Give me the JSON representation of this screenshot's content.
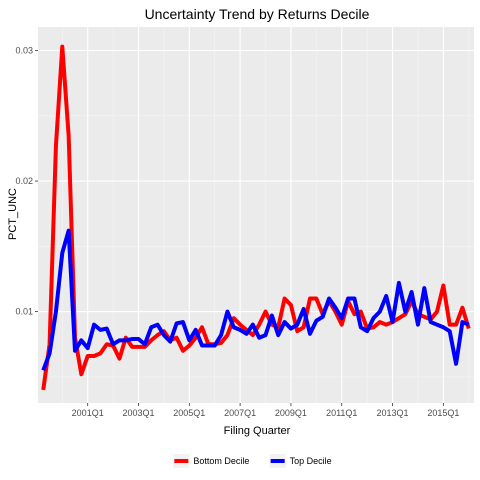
{
  "chart_data": {
    "type": "line",
    "title": "Uncertainty Trend by Returns Decile",
    "xlabel": "Filing Quarter",
    "ylabel": "PCT_UNC",
    "x_ticks": [
      "2001Q1",
      "2003Q1",
      "2005Q1",
      "2007Q1",
      "2009Q1",
      "2011Q1",
      "2013Q1",
      "2015Q1"
    ],
    "y_ticks": [
      0.01,
      0.02,
      0.03
    ],
    "y_tick_labels": [
      "0.01",
      "0.02",
      "0.03"
    ],
    "x_range": [
      "1999Q2",
      "2016Q1"
    ],
    "ylim": [
      0.003,
      0.0318
    ],
    "grid": true,
    "legend_position": "bottom",
    "series": [
      {
        "name": "Bottom Decile",
        "color": "#ff0000",
        "points": [
          [
            "1999Q2",
            0.004
          ],
          [
            "1999Q3",
            0.0075
          ],
          [
            "1999Q4",
            0.0227
          ],
          [
            "2000Q1",
            0.0303
          ],
          [
            "2000Q2",
            0.0235
          ],
          [
            "2000Q3",
            0.008
          ],
          [
            "2000Q4",
            0.0052
          ],
          [
            "2001Q1",
            0.0066
          ],
          [
            "2001Q2",
            0.0066
          ],
          [
            "2001Q3",
            0.0068
          ],
          [
            "2001Q4",
            0.0075
          ],
          [
            "2002Q1",
            0.0074
          ],
          [
            "2002Q2",
            0.0064
          ],
          [
            "2002Q3",
            0.008
          ],
          [
            "2002Q4",
            0.0073
          ],
          [
            "2003Q1",
            0.0073
          ],
          [
            "2003Q2",
            0.0073
          ],
          [
            "2003Q3",
            0.0078
          ],
          [
            "2003Q4",
            0.0082
          ],
          [
            "2004Q1",
            0.0085
          ],
          [
            "2004Q2",
            0.0078
          ],
          [
            "2004Q3",
            0.008
          ],
          [
            "2004Q4",
            0.007
          ],
          [
            "2005Q1",
            0.0074
          ],
          [
            "2005Q2",
            0.008
          ],
          [
            "2005Q3",
            0.0088
          ],
          [
            "2005Q4",
            0.0075
          ],
          [
            "2006Q1",
            0.0075
          ],
          [
            "2006Q2",
            0.0076
          ],
          [
            "2006Q3",
            0.0082
          ],
          [
            "2006Q4",
            0.0095
          ],
          [
            "2007Q1",
            0.009
          ],
          [
            "2007Q2",
            0.0086
          ],
          [
            "2007Q3",
            0.0082
          ],
          [
            "2007Q4",
            0.009
          ],
          [
            "2008Q1",
            0.01
          ],
          [
            "2008Q2",
            0.009
          ],
          [
            "2008Q3",
            0.0088
          ],
          [
            "2008Q4",
            0.011
          ],
          [
            "2009Q1",
            0.0105
          ],
          [
            "2009Q2",
            0.0085
          ],
          [
            "2009Q3",
            0.0088
          ],
          [
            "2009Q4",
            0.011
          ],
          [
            "2010Q1",
            0.011
          ],
          [
            "2010Q2",
            0.0098
          ],
          [
            "2010Q3",
            0.0108
          ],
          [
            "2010Q4",
            0.01
          ],
          [
            "2011Q1",
            0.009
          ],
          [
            "2011Q2",
            0.0108
          ],
          [
            "2011Q3",
            0.0098
          ],
          [
            "2011Q4",
            0.01
          ],
          [
            "2012Q1",
            0.0087
          ],
          [
            "2012Q2",
            0.0088
          ],
          [
            "2012Q3",
            0.0092
          ],
          [
            "2012Q4",
            0.009
          ],
          [
            "2013Q1",
            0.0092
          ],
          [
            "2013Q2",
            0.0095
          ],
          [
            "2013Q3",
            0.0098
          ],
          [
            "2013Q4",
            0.0108
          ],
          [
            "2014Q1",
            0.0098
          ],
          [
            "2014Q2",
            0.0096
          ],
          [
            "2014Q3",
            0.0094
          ],
          [
            "2014Q4",
            0.01
          ],
          [
            "2015Q1",
            0.012
          ],
          [
            "2015Q2",
            0.009
          ],
          [
            "2015Q3",
            0.009
          ],
          [
            "2015Q4",
            0.0103
          ],
          [
            "2016Q1",
            0.0087
          ]
        ]
      },
      {
        "name": "Top Decile",
        "color": "#0000ff",
        "points": [
          [
            "1999Q2",
            0.0055
          ],
          [
            "1999Q3",
            0.0068
          ],
          [
            "1999Q4",
            0.01
          ],
          [
            "2000Q1",
            0.0145
          ],
          [
            "2000Q2",
            0.0162
          ],
          [
            "2000Q3",
            0.007
          ],
          [
            "2000Q4",
            0.0078
          ],
          [
            "2001Q1",
            0.0072
          ],
          [
            "2001Q2",
            0.009
          ],
          [
            "2001Q3",
            0.0086
          ],
          [
            "2001Q4",
            0.0087
          ],
          [
            "2002Q1",
            0.0075
          ],
          [
            "2002Q2",
            0.0078
          ],
          [
            "2002Q3",
            0.0078
          ],
          [
            "2002Q4",
            0.0079
          ],
          [
            "2003Q1",
            0.0079
          ],
          [
            "2003Q2",
            0.0075
          ],
          [
            "2003Q3",
            0.0088
          ],
          [
            "2003Q4",
            0.009
          ],
          [
            "2004Q1",
            0.0082
          ],
          [
            "2004Q2",
            0.0077
          ],
          [
            "2004Q3",
            0.0091
          ],
          [
            "2004Q4",
            0.0092
          ],
          [
            "2005Q1",
            0.0078
          ],
          [
            "2005Q2",
            0.0086
          ],
          [
            "2005Q3",
            0.0074
          ],
          [
            "2005Q4",
            0.0074
          ],
          [
            "2006Q1",
            0.0074
          ],
          [
            "2006Q2",
            0.0082
          ],
          [
            "2006Q3",
            0.01
          ],
          [
            "2006Q4",
            0.0088
          ],
          [
            "2007Q1",
            0.0086
          ],
          [
            "2007Q2",
            0.0083
          ],
          [
            "2007Q3",
            0.009
          ],
          [
            "2007Q4",
            0.008
          ],
          [
            "2008Q1",
            0.0082
          ],
          [
            "2008Q2",
            0.0097
          ],
          [
            "2008Q3",
            0.0082
          ],
          [
            "2008Q4",
            0.0092
          ],
          [
            "2009Q1",
            0.0087
          ],
          [
            "2009Q2",
            0.009
          ],
          [
            "2009Q3",
            0.0102
          ],
          [
            "2009Q4",
            0.0083
          ],
          [
            "2010Q1",
            0.0093
          ],
          [
            "2010Q2",
            0.0096
          ],
          [
            "2010Q3",
            0.011
          ],
          [
            "2010Q4",
            0.0103
          ],
          [
            "2011Q1",
            0.0095
          ],
          [
            "2011Q2",
            0.011
          ],
          [
            "2011Q3",
            0.011
          ],
          [
            "2011Q4",
            0.0088
          ],
          [
            "2012Q1",
            0.0085
          ],
          [
            "2012Q2",
            0.0095
          ],
          [
            "2012Q3",
            0.01
          ],
          [
            "2012Q4",
            0.0112
          ],
          [
            "2013Q1",
            0.0092
          ],
          [
            "2013Q2",
            0.0122
          ],
          [
            "2013Q3",
            0.01
          ],
          [
            "2013Q4",
            0.0115
          ],
          [
            "2014Q1",
            0.009
          ],
          [
            "2014Q2",
            0.0118
          ],
          [
            "2014Q3",
            0.0092
          ],
          [
            "2014Q4",
            0.009
          ],
          [
            "2015Q1",
            0.0088
          ],
          [
            "2015Q2",
            0.0085
          ],
          [
            "2015Q3",
            0.006
          ],
          [
            "2015Q4",
            0.0092
          ],
          [
            "2016Q1",
            0.009
          ]
        ]
      }
    ]
  }
}
